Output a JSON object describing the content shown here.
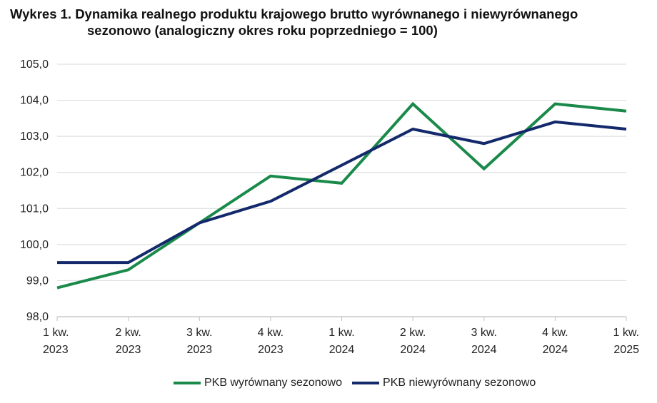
{
  "title": {
    "line1": "Wykres 1. Dynamika realnego produktu krajowego brutto wyrównanego i niewyrównanego",
    "line2": "sezonowo (analogiczny okres roku poprzedniego = 100)"
  },
  "colors": {
    "adjusted": "#1a8a4a",
    "unadjusted": "#13296b",
    "grid": "#d9d9d9",
    "axis": "#bfbfbf"
  },
  "chart_data": {
    "type": "line",
    "categories": [
      [
        "1 kw.",
        "2023"
      ],
      [
        "2 kw.",
        "2023"
      ],
      [
        "3 kw.",
        "2023"
      ],
      [
        "4 kw.",
        "2023"
      ],
      [
        "1 kw.",
        "2024"
      ],
      [
        "2 kw.",
        "2024"
      ],
      [
        "3 kw.",
        "2024"
      ],
      [
        "4 kw.",
        "2024"
      ],
      [
        "1 kw.",
        "2025"
      ]
    ],
    "series": [
      {
        "name": "PKB wyrównany sezonowo",
        "values": [
          98.8,
          99.3,
          100.6,
          101.9,
          101.7,
          103.9,
          102.1,
          103.9,
          103.7
        ]
      },
      {
        "name": "PKB niewyrównany sezonowo",
        "values": [
          99.5,
          99.5,
          100.6,
          101.2,
          102.2,
          103.2,
          102.8,
          103.4,
          103.2
        ]
      }
    ],
    "ylim": [
      98.0,
      105.0
    ],
    "yticks": [
      "98,0",
      "99,0",
      "100,0",
      "101,0",
      "102,0",
      "103,0",
      "104,0",
      "105,0"
    ],
    "grid": true,
    "legend_position": "bottom"
  }
}
